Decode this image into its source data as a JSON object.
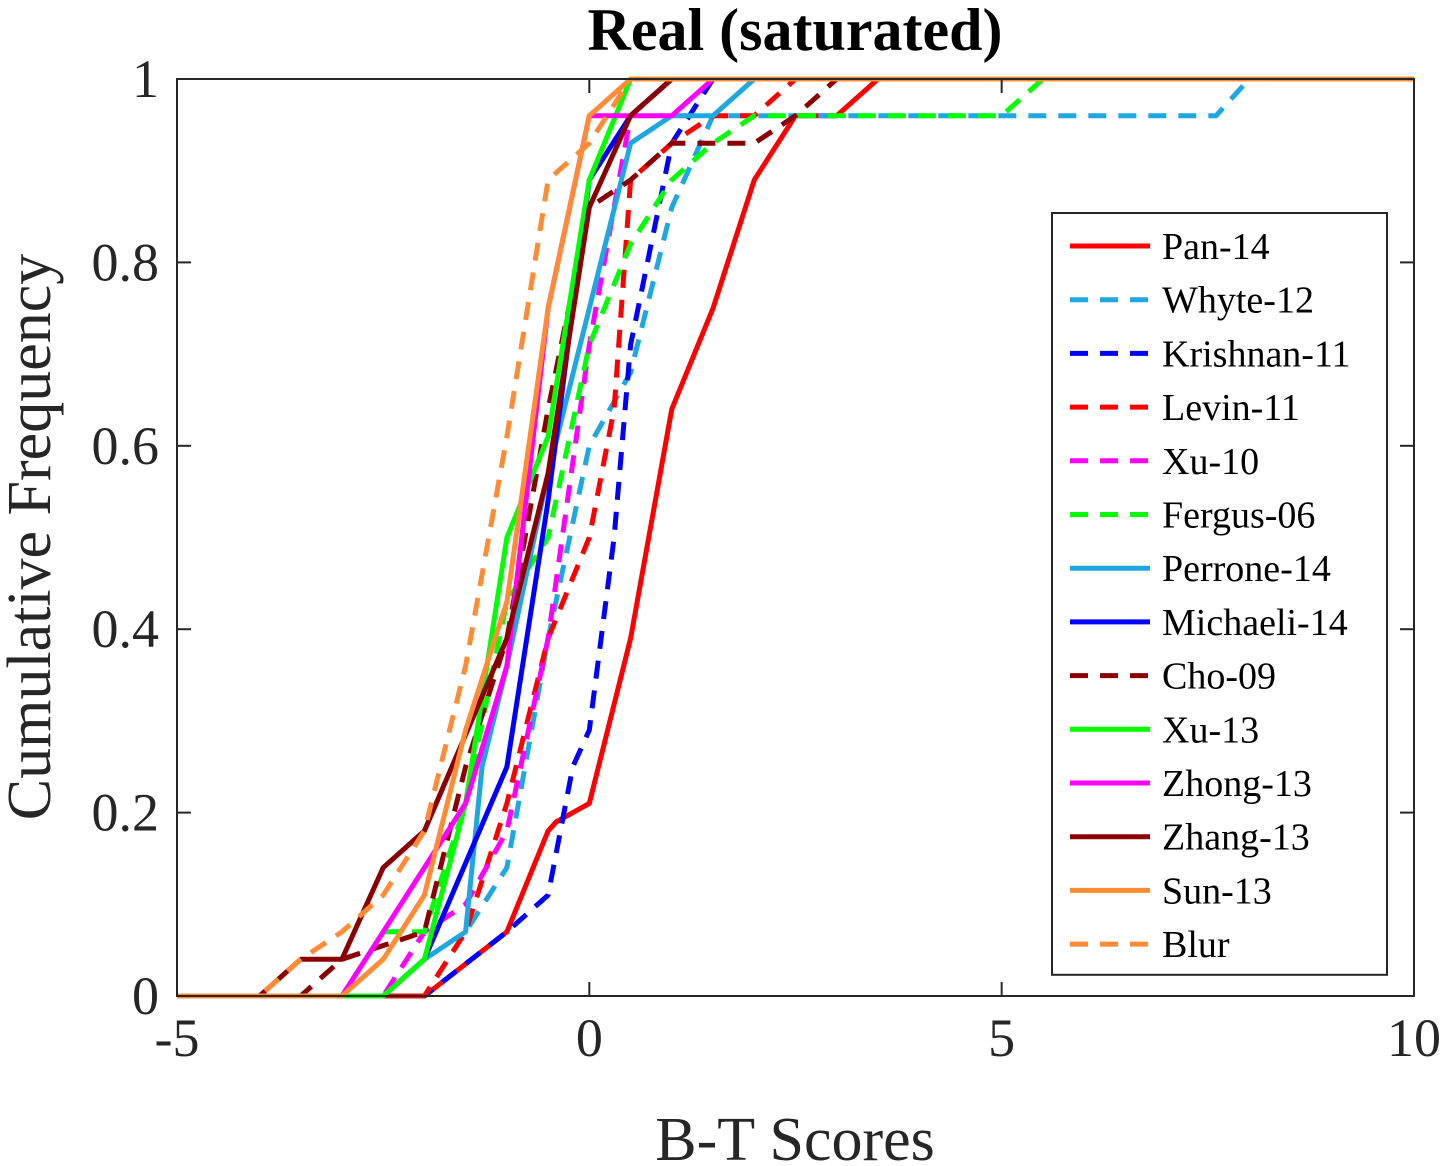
{
  "chart_data": {
    "type": "line",
    "title": "Real (saturated)",
    "xlabel": "B-T Scores",
    "ylabel": "Cumulative Frequency",
    "xlim": [
      -5,
      10
    ],
    "ylim": [
      0,
      1
    ],
    "xticks": [
      -5,
      0,
      5,
      10
    ],
    "yticks": [
      0,
      0.2,
      0.4,
      0.6,
      0.8,
      1
    ],
    "ytick_labels": [
      "0",
      "0.2",
      "0.4",
      "0.6",
      "0.8",
      "1"
    ],
    "grid": false,
    "legend_position": "right",
    "series": [
      {
        "name": "Pan-14",
        "color": "#ff0000",
        "dash": "solid",
        "x": [
          -5,
          -2.5,
          -2,
          -1,
          -0.5,
          -0.4,
          0,
          0.5,
          1,
          1.5,
          2,
          2.5,
          3,
          3.5,
          10
        ],
        "y": [
          0,
          0,
          0,
          0.07,
          0.18,
          0.19,
          0.21,
          0.39,
          0.64,
          0.75,
          0.89,
          0.96,
          0.96,
          1,
          1
        ]
      },
      {
        "name": "Whyte-12",
        "color": "#1ea7e0",
        "dash": "dash",
        "x": [
          -5,
          -2,
          -1.5,
          -1,
          -0.5,
          0,
          0.5,
          1,
          1.5,
          2,
          7.6,
          8,
          10
        ],
        "y": [
          0,
          0,
          0.07,
          0.14,
          0.39,
          0.6,
          0.68,
          0.86,
          0.96,
          0.96,
          0.96,
          1,
          1
        ]
      },
      {
        "name": "Krishnan-11",
        "color": "#0000ff",
        "dash": "dash",
        "x": [
          -5,
          -2,
          -1,
          -0.5,
          -0.2,
          0,
          0.3,
          0.5,
          1,
          1.5,
          10
        ],
        "y": [
          0,
          0,
          0.07,
          0.11,
          0.25,
          0.29,
          0.5,
          0.71,
          0.93,
          1,
          1
        ]
      },
      {
        "name": "Levin-11",
        "color": "#ff0000",
        "dash": "dash",
        "x": [
          -5,
          -2,
          -1.5,
          -1,
          -0.5,
          0,
          0.3,
          0.5,
          1,
          1.5,
          2,
          2.5,
          10
        ],
        "y": [
          0,
          0,
          0.07,
          0.21,
          0.39,
          0.5,
          0.64,
          0.89,
          0.93,
          0.96,
          0.96,
          1,
          1
        ]
      },
      {
        "name": "Xu-10",
        "color": "#ff00ff",
        "dash": "dash",
        "x": [
          -5,
          -2.5,
          -2,
          -1.5,
          -1,
          -0.5,
          0,
          0.5,
          1,
          10
        ],
        "y": [
          0,
          0,
          0.07,
          0.1,
          0.18,
          0.39,
          0.71,
          0.96,
          1,
          1
        ]
      },
      {
        "name": "Fergus-06",
        "color": "#00ff00",
        "dash": "dash",
        "x": [
          -5,
          -3,
          -2.5,
          -2,
          -1.5,
          -1,
          -0.5,
          0,
          0.5,
          1,
          1.5,
          2,
          2.5,
          5,
          5.5,
          10
        ],
        "y": [
          0,
          0,
          0.07,
          0.07,
          0.21,
          0.43,
          0.5,
          0.71,
          0.82,
          0.89,
          0.93,
          0.96,
          0.96,
          0.96,
          1,
          1
        ]
      },
      {
        "name": "Perrone-14",
        "color": "#1ea7e0",
        "dash": "solid",
        "x": [
          -5,
          -2.5,
          -2,
          -1.5,
          -1.3,
          -1,
          -0.5,
          0,
          0.5,
          1,
          1.5,
          2,
          10
        ],
        "y": [
          0,
          0,
          0.04,
          0.07,
          0.25,
          0.36,
          0.57,
          0.75,
          0.93,
          0.96,
          0.96,
          1,
          1
        ]
      },
      {
        "name": "Michaeli-14",
        "color": "#0000ff",
        "dash": "solid",
        "x": [
          -5,
          -2.5,
          -2,
          -1,
          -0.5,
          0,
          0.5,
          1,
          10
        ],
        "y": [
          0,
          0,
          0.04,
          0.25,
          0.54,
          0.89,
          0.96,
          1,
          1
        ]
      },
      {
        "name": "Cho-09",
        "color": "#8b0000",
        "dash": "dash",
        "x": [
          -5,
          -3.5,
          -3,
          -2,
          -1.5,
          -1,
          -0.5,
          0,
          0.5,
          1,
          1.5,
          2,
          2.5,
          3,
          10
        ],
        "y": [
          0,
          0,
          0.04,
          0.07,
          0.25,
          0.39,
          0.64,
          0.86,
          0.89,
          0.93,
          0.93,
          0.93,
          0.96,
          1,
          1
        ]
      },
      {
        "name": "Xu-13",
        "color": "#00ff00",
        "dash": "solid",
        "x": [
          -5,
          -2.5,
          -2,
          -1.5,
          -1,
          -0.5,
          0,
          0.5,
          10
        ],
        "y": [
          0,
          0,
          0.04,
          0.21,
          0.5,
          0.61,
          0.89,
          1,
          1
        ]
      },
      {
        "name": "Zhong-13",
        "color": "#ff00ff",
        "dash": "solid",
        "x": [
          -5,
          -3,
          -2.5,
          -2,
          -1.5,
          -1,
          -0.5,
          0,
          0.5,
          1,
          1.5,
          10
        ],
        "y": [
          0,
          0,
          0.07,
          0.14,
          0.21,
          0.36,
          0.75,
          0.96,
          0.96,
          0.96,
          1,
          1
        ]
      },
      {
        "name": "Zhang-13",
        "color": "#8b0000",
        "dash": "solid",
        "x": [
          -5,
          -4,
          -3.5,
          -3,
          -2.5,
          -2,
          -1,
          -0.5,
          0,
          0.5,
          1,
          10
        ],
        "y": [
          0,
          0,
          0.04,
          0.04,
          0.14,
          0.18,
          0.39,
          0.57,
          0.86,
          0.96,
          1,
          1
        ]
      },
      {
        "name": "Sun-13",
        "color": "#ff8c35",
        "dash": "solid",
        "x": [
          -5,
          -3,
          -2.5,
          -2,
          -1.5,
          -1,
          -0.5,
          0,
          0.5,
          10
        ],
        "y": [
          0,
          0,
          0.04,
          0.11,
          0.29,
          0.43,
          0.75,
          0.96,
          1,
          1
        ]
      },
      {
        "name": "Blur",
        "color": "#ff8c35",
        "dash": "dash",
        "x": [
          -5,
          -4,
          -3.5,
          -3,
          -2.5,
          -2,
          -1.5,
          -1,
          -0.5,
          0,
          0.5,
          10
        ],
        "y": [
          0,
          0,
          0.04,
          0.07,
          0.11,
          0.18,
          0.36,
          0.61,
          0.89,
          0.93,
          1,
          1
        ]
      }
    ]
  }
}
